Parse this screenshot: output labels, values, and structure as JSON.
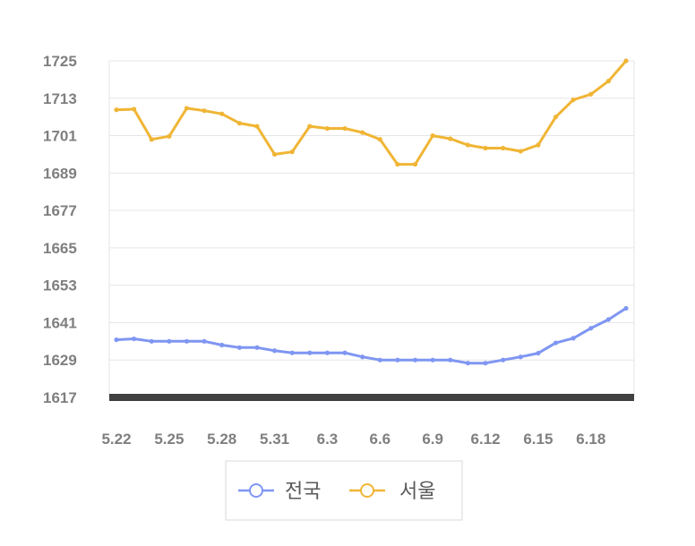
{
  "chart_data": {
    "type": "line",
    "title": "",
    "xlabel": "",
    "ylabel": "",
    "ylim": [
      1617,
      1725
    ],
    "yticks": [
      1617,
      1629,
      1641,
      1653,
      1665,
      1677,
      1689,
      1701,
      1713,
      1725
    ],
    "x": [
      "5.22",
      "5.23",
      "5.24",
      "5.25",
      "5.26",
      "5.27",
      "5.28",
      "5.29",
      "5.30",
      "5.31",
      "6.1",
      "6.2",
      "6.3",
      "6.4",
      "6.5",
      "6.6",
      "6.7",
      "6.8",
      "6.9",
      "6.10",
      "6.11",
      "6.12",
      "6.13",
      "6.14",
      "6.15",
      "6.16",
      "6.17",
      "6.18",
      "6.19",
      "6.20"
    ],
    "xtick_labels": [
      "5.22",
      "5.25",
      "5.28",
      "5.31",
      "6.3",
      "6.6",
      "6.9",
      "6.12",
      "6.15",
      "6.18"
    ],
    "grid": "horizontal",
    "legend_position": "bottom",
    "series": [
      {
        "name": "전국",
        "color": "#7f96f2",
        "values": [
          1635.5,
          1635.8,
          1635.0,
          1635.0,
          1635.0,
          1635.0,
          1633.8,
          1633.0,
          1633.0,
          1632.0,
          1631.3,
          1631.3,
          1631.3,
          1631.3,
          1630.0,
          1629.0,
          1629.0,
          1629.0,
          1629.0,
          1629.0,
          1628.0,
          1628.0,
          1629.0,
          1630.0,
          1631.2,
          1634.5,
          1636.0,
          1639.2,
          1642.0,
          1645.6
        ]
      },
      {
        "name": "서울",
        "color": "#f0b535",
        "values": [
          1709.3,
          1709.5,
          1699.8,
          1700.8,
          1709.8,
          1709.0,
          1708.0,
          1705.0,
          1704.0,
          1695.0,
          1695.8,
          1704.0,
          1703.3,
          1703.3,
          1702.0,
          1699.8,
          1691.8,
          1691.8,
          1701.0,
          1700.0,
          1698.0,
          1697.0,
          1697.0,
          1696.0,
          1698.0,
          1707.0,
          1712.5,
          1714.3,
          1718.5,
          1725.0
        ]
      }
    ]
  }
}
